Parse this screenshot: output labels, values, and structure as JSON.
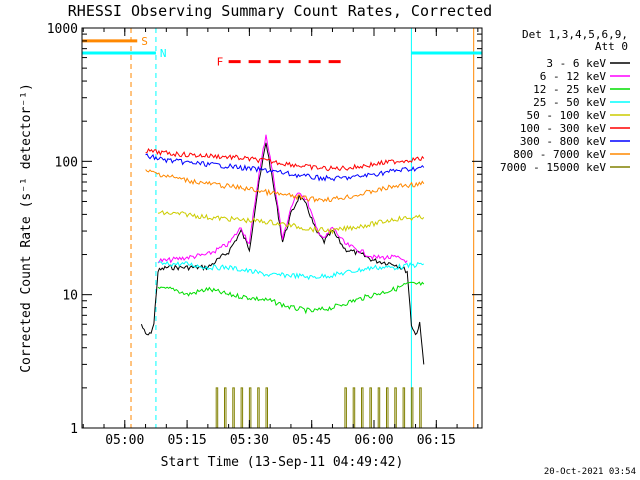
{
  "chart_data": {
    "type": "line",
    "title": "RHESSI Observing Summary Count Rates, Corrected",
    "xlabel": "Start Time (13-Sep-11 04:49:42)",
    "ylabel": "Corrected Count Rate (s⁻¹ detector⁻¹)",
    "y_scale": "log",
    "ylim": [
      1,
      1000
    ],
    "xlim": [
      "04:49:42",
      "06:26:00"
    ],
    "x_ticks": [
      "05:00",
      "05:15",
      "05:30",
      "05:45",
      "06:00",
      "06:15"
    ],
    "y_ticks": [
      "1",
      "10",
      "100",
      "1000"
    ],
    "grid": false,
    "legend": {
      "placement": "top-right",
      "header": [
        "Det 1,3,4,5,6,9,",
        "Att 0"
      ],
      "entries": [
        {
          "label": "3 - 6 keV",
          "color": "#000000"
        },
        {
          "label": "6 - 12 keV",
          "color": "#ff00ff"
        },
        {
          "label": "12 - 25 keV",
          "color": "#00dd00"
        },
        {
          "label": "25 - 50 keV",
          "color": "#00ffff"
        },
        {
          "label": "50 - 100 keV",
          "color": "#cccc00"
        },
        {
          "label": "100 - 300 keV",
          "color": "#ff0000"
        },
        {
          "label": "300 - 800 keV",
          "color": "#0000ff"
        },
        {
          "label": "800 - 7000 keV",
          "color": "#ff8800"
        },
        {
          "label": "7000 - 15000 keV",
          "color": "#808000"
        }
      ]
    },
    "flags": [
      {
        "label": "S",
        "color": "#ff8800",
        "start": "04:49:42",
        "end": "05:03:00",
        "level": 800
      },
      {
        "label": "N",
        "color": "#00ffff",
        "start": "04:49:42",
        "end": "05:07:30",
        "level": 650
      },
      {
        "label": "N",
        "color": "#00ffff",
        "start": "06:09:00",
        "end": "06:26:00",
        "level": 650
      },
      {
        "label": "F",
        "color": "#ff0000",
        "start": "05:25:00",
        "end": "05:52:00",
        "level": 560
      }
    ],
    "marker_lines": [
      {
        "time": "05:07:30",
        "color": "#00ffff",
        "dashed": true
      },
      {
        "time": "05:01:30",
        "color": "#ff8800",
        "dashed": true
      },
      {
        "time": "06:09:00",
        "color": "#00ffff",
        "dashed": false
      },
      {
        "time": "06:24:00",
        "color": "#ff8800",
        "dashed": false
      }
    ],
    "series": [
      {
        "name": "3 - 6 keV",
        "color": "#000000",
        "x": [
          "05:04:00",
          "05:05:00",
          "05:06:00",
          "05:07:00",
          "05:08:00",
          "05:10:00",
          "05:15:00",
          "05:20:00",
          "05:25:00",
          "05:28:00",
          "05:30:00",
          "05:32:00",
          "05:34:00",
          "05:36:00",
          "05:38:00",
          "05:40:00",
          "05:42:00",
          "05:44:00",
          "05:46:00",
          "05:48:00",
          "05:50:00",
          "05:53:00",
          "05:57:00",
          "06:00:00",
          "06:05:00",
          "06:08:00",
          "06:09:00",
          "06:10:00",
          "06:11:00",
          "06:12:00"
        ],
        "y": [
          6,
          5,
          5,
          6,
          15,
          16,
          16,
          16,
          21,
          30,
          22,
          60,
          140,
          60,
          25,
          40,
          55,
          45,
          30,
          25,
          30,
          22,
          20,
          18,
          17,
          15,
          6,
          5,
          6,
          3
        ]
      },
      {
        "name": "6 - 12 keV",
        "color": "#ff00ff",
        "x": [
          "05:08:00",
          "05:10:00",
          "05:15:00",
          "05:20:00",
          "05:25:00",
          "05:28:00",
          "05:30:00",
          "05:32:00",
          "05:34:00",
          "05:36:00",
          "05:38:00",
          "05:40:00",
          "05:42:00",
          "05:44:00",
          "05:46:00",
          "05:48:00",
          "05:50:00",
          "05:53:00",
          "05:57:00",
          "06:00:00",
          "06:05:00",
          "06:08:00"
        ],
        "y": [
          18,
          18,
          19,
          20,
          24,
          32,
          24,
          70,
          160,
          70,
          26,
          45,
          60,
          50,
          32,
          26,
          32,
          24,
          21,
          19,
          19,
          18
        ]
      },
      {
        "name": "12 - 25 keV",
        "color": "#00dd00",
        "x": [
          "05:08:00",
          "05:12:00",
          "05:15:00",
          "05:20:00",
          "05:25:00",
          "05:30:00",
          "05:35:00",
          "05:40:00",
          "05:45:00",
          "05:50:00",
          "05:55:00",
          "06:00:00",
          "06:05:00",
          "06:08:00",
          "06:12:00"
        ],
        "y": [
          11,
          11,
          10,
          11,
          10,
          9.5,
          9,
          8,
          7.5,
          8,
          9,
          10,
          11,
          12,
          12
        ]
      },
      {
        "name": "25 - 50 keV",
        "color": "#00ffff",
        "x": [
          "05:08:00",
          "05:15:00",
          "05:20:00",
          "05:25:00",
          "05:30:00",
          "05:35:00",
          "05:40:00",
          "05:45:00",
          "05:50:00",
          "05:55:00",
          "06:00:00",
          "06:05:00",
          "06:12:00"
        ],
        "y": [
          17,
          17,
          16,
          16,
          15,
          14,
          14,
          13.5,
          14,
          15,
          16,
          16,
          17
        ]
      },
      {
        "name": "50 - 100 keV",
        "color": "#cccc00",
        "x": [
          "05:08:00",
          "05:15:00",
          "05:20:00",
          "05:25:00",
          "05:30:00",
          "05:35:00",
          "05:40:00",
          "05:45:00",
          "05:50:00",
          "05:55:00",
          "06:00:00",
          "06:05:00",
          "06:12:00"
        ],
        "y": [
          41,
          40,
          38,
          37,
          36,
          35,
          33,
          31,
          30,
          32,
          34,
          37,
          38
        ]
      },
      {
        "name": "100 - 300 keV",
        "color": "#ff0000",
        "x": [
          "05:05:00",
          "05:10:00",
          "05:15:00",
          "05:20:00",
          "05:25:00",
          "05:30:00",
          "05:35:00",
          "05:40:00",
          "05:45:00",
          "05:50:00",
          "05:55:00",
          "06:00:00",
          "06:05:00",
          "06:12:00"
        ],
        "y": [
          120,
          115,
          112,
          110,
          108,
          104,
          100,
          95,
          90,
          88,
          90,
          95,
          100,
          105
        ]
      },
      {
        "name": "300 - 800 keV",
        "color": "#0000ff",
        "x": [
          "05:05:00",
          "05:10:00",
          "05:15:00",
          "05:20:00",
          "05:25:00",
          "05:30:00",
          "05:35:00",
          "05:40:00",
          "05:45:00",
          "05:50:00",
          "05:55:00",
          "06:00:00",
          "06:05:00",
          "06:12:00"
        ],
        "y": [
          110,
          102,
          98,
          95,
          92,
          88,
          85,
          80,
          76,
          74,
          76,
          80,
          85,
          90
        ]
      },
      {
        "name": "800 - 7000 keV",
        "color": "#ff8800",
        "x": [
          "05:05:00",
          "05:10:00",
          "05:15:00",
          "05:20:00",
          "05:25:00",
          "05:30:00",
          "05:35:00",
          "05:40:00",
          "05:45:00",
          "05:50:00",
          "05:55:00",
          "06:00:00",
          "06:05:00",
          "06:12:00"
        ],
        "y": [
          85,
          78,
          72,
          68,
          65,
          62,
          58,
          55,
          52,
          52,
          55,
          60,
          65,
          68
        ]
      },
      {
        "name": "7000 - 15000 keV",
        "color": "#808000",
        "x": [
          "05:22:00",
          "05:23:00",
          "05:24:00",
          "05:25:00",
          "05:26:00",
          "05:27:00",
          "05:28:00",
          "05:29:00",
          "05:30:00",
          "05:31:00",
          "05:32:00",
          "05:33:00",
          "05:34:00",
          "05:53:00",
          "05:54:00",
          "05:55:00",
          "05:56:00",
          "05:57:00",
          "05:58:00",
          "05:59:00",
          "06:00:00",
          "06:01:00",
          "06:02:00",
          "06:03:00",
          "06:04:00",
          "06:05:00",
          "06:06:00",
          "06:07:00",
          "06:08:00",
          "06:09:00",
          "06:10:00",
          "06:11:00"
        ],
        "y": [
          2,
          1,
          2,
          1,
          2,
          1,
          2,
          1,
          2,
          1,
          2,
          1,
          2,
          2,
          1,
          2,
          1,
          2,
          1,
          2,
          1,
          2,
          1,
          2,
          1,
          2,
          1,
          2,
          1,
          2,
          1,
          2
        ]
      }
    ]
  },
  "footer": {
    "timestamp": "20-Oct-2021 03:54"
  }
}
